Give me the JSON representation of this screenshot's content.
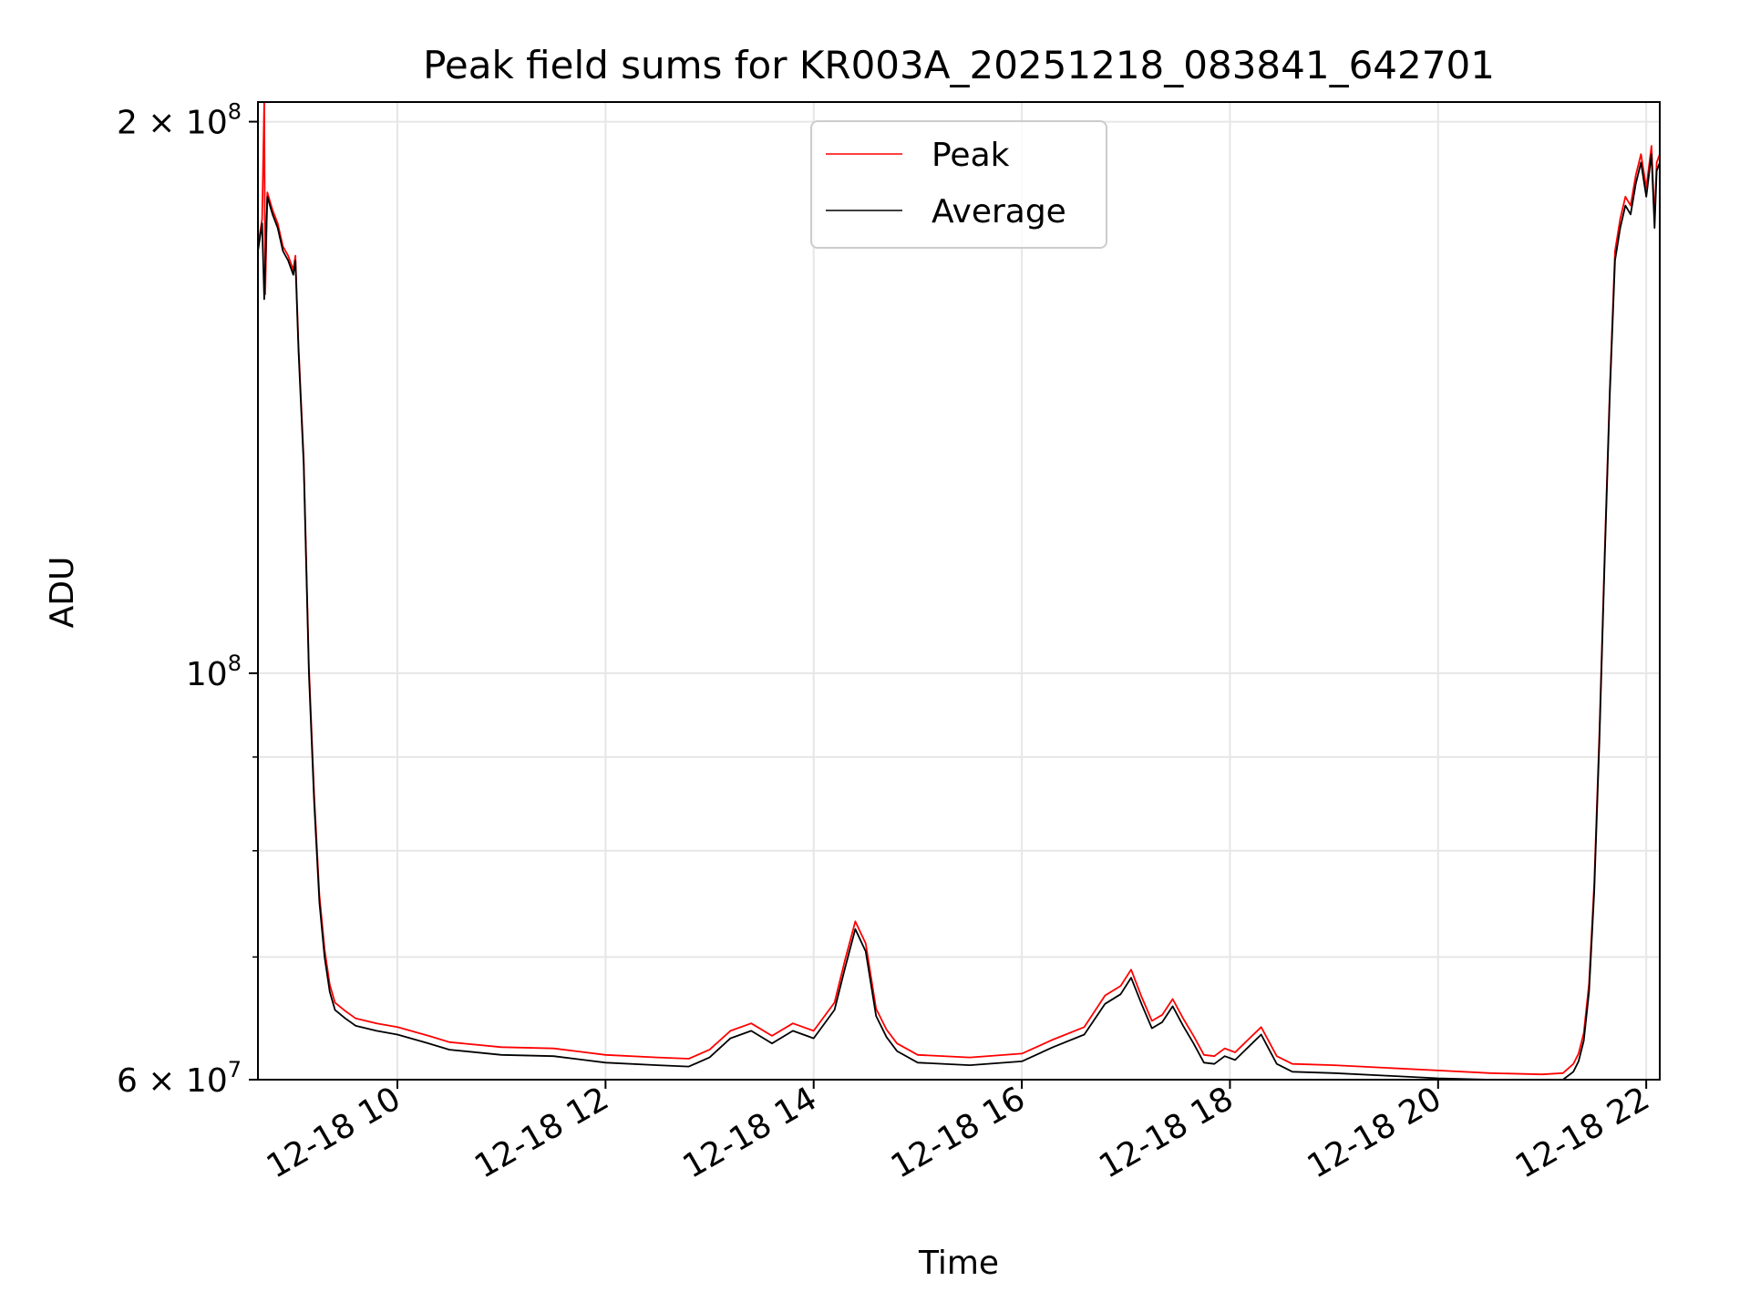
{
  "chart_data": {
    "type": "line",
    "title": "Peak field sums for KR003A_20251218_083841_642701",
    "xlabel": "Time",
    "ylabel": "ADU",
    "yscale": "log",
    "ylim": [
      60000000,
      205000000
    ],
    "xlim": [
      8.66,
      22.13
    ],
    "grid": true,
    "legend": {
      "position": "top-center",
      "entries": [
        "Peak",
        "Average"
      ]
    },
    "x_ticks": [
      {
        "value": 10,
        "label": "12-18 10"
      },
      {
        "value": 12,
        "label": "12-18 12"
      },
      {
        "value": 14,
        "label": "12-18 14"
      },
      {
        "value": 16,
        "label": "12-18 16"
      },
      {
        "value": 18,
        "label": "12-18 18"
      },
      {
        "value": 20,
        "label": "12-18 20"
      },
      {
        "value": 22,
        "label": "12-18 22"
      }
    ],
    "y_major_ticks": [
      {
        "value": 60000000,
        "base": "6 × 10",
        "exp": "7"
      },
      {
        "value": 100000000,
        "base": "10",
        "exp": "8"
      },
      {
        "value": 200000000,
        "base": "2 × 10",
        "exp": "8"
      }
    ],
    "y_minor_ticks": [
      70000000,
      80000000,
      90000000
    ],
    "x_units": "hours (2025-12-18)",
    "series": [
      {
        "name": "Average",
        "color": "#000000",
        "x": [
          8.66,
          8.7,
          8.72,
          8.75,
          8.8,
          8.85,
          8.9,
          8.95,
          9.0,
          9.02,
          9.05,
          9.1,
          9.15,
          9.2,
          9.25,
          9.3,
          9.35,
          9.4,
          9.5,
          9.6,
          9.8,
          10.0,
          10.3,
          10.5,
          11.0,
          11.5,
          12.0,
          12.5,
          12.8,
          13.0,
          13.2,
          13.4,
          13.6,
          13.8,
          14.0,
          14.2,
          14.3,
          14.4,
          14.5,
          14.6,
          14.7,
          14.8,
          15.0,
          15.5,
          16.0,
          16.3,
          16.6,
          16.8,
          16.95,
          17.05,
          17.15,
          17.25,
          17.35,
          17.45,
          17.55,
          17.65,
          17.75,
          17.85,
          17.95,
          18.05,
          18.15,
          18.3,
          18.45,
          18.6,
          19.0,
          19.5,
          20.0,
          20.5,
          21.0,
          21.2,
          21.3,
          21.35,
          21.4,
          21.45,
          21.5,
          21.55,
          21.6,
          21.65,
          21.7,
          21.75,
          21.8,
          21.85,
          21.9,
          21.95,
          22.0,
          22.05,
          22.08,
          22.1,
          22.13
        ],
        "values": [
          170000000,
          176000000,
          160000000,
          182000000,
          178000000,
          175000000,
          170000000,
          168000000,
          165000000,
          168000000,
          150000000,
          130000000,
          100000000,
          85000000,
          75000000,
          70000000,
          67000000,
          65500000,
          64800000,
          64200000,
          63800000,
          63500000,
          62800000,
          62300000,
          61900000,
          61800000,
          61300000,
          61100000,
          61000000,
          61700000,
          63200000,
          63800000,
          62800000,
          63800000,
          63200000,
          65500000,
          69000000,
          72500000,
          70500000,
          65000000,
          63300000,
          62200000,
          61300000,
          61100000,
          61400000,
          62500000,
          63500000,
          66000000,
          66800000,
          68200000,
          66000000,
          64000000,
          64500000,
          65800000,
          64200000,
          62800000,
          61300000,
          61200000,
          61800000,
          61500000,
          62300000,
          63500000,
          61200000,
          60600000,
          60500000,
          60300000,
          60100000,
          60000000,
          59900000,
          60000000,
          60600000,
          61400000,
          63000000,
          67000000,
          76000000,
          92000000,
          115000000,
          142000000,
          168000000,
          175000000,
          180000000,
          178000000,
          185000000,
          190000000,
          182000000,
          192000000,
          175000000,
          188000000,
          190000000
        ]
      },
      {
        "name": "Peak",
        "color": "#ff0000",
        "x": [
          8.66,
          8.7,
          8.72,
          8.73,
          8.75,
          8.8,
          8.85,
          8.9,
          8.95,
          9.0,
          9.02,
          9.05,
          9.1,
          9.15,
          9.2,
          9.25,
          9.3,
          9.35,
          9.4,
          9.5,
          9.6,
          9.8,
          10.0,
          10.3,
          10.5,
          11.0,
          11.5,
          12.0,
          12.5,
          12.8,
          13.0,
          13.2,
          13.4,
          13.6,
          13.8,
          14.0,
          14.2,
          14.3,
          14.4,
          14.5,
          14.6,
          14.7,
          14.8,
          15.0,
          15.5,
          16.0,
          16.3,
          16.6,
          16.8,
          16.95,
          17.05,
          17.15,
          17.25,
          17.35,
          17.45,
          17.55,
          17.65,
          17.75,
          17.85,
          17.95,
          18.05,
          18.15,
          18.3,
          18.45,
          18.6,
          19.0,
          19.5,
          20.0,
          20.5,
          21.0,
          21.2,
          21.3,
          21.35,
          21.4,
          21.45,
          21.5,
          21.55,
          21.6,
          21.65,
          21.7,
          21.75,
          21.8,
          21.85,
          21.9,
          21.95,
          22.0,
          22.05,
          22.08,
          22.1,
          22.13
        ],
        "values": [
          171000000,
          177000000,
          205000000,
          161000000,
          183000000,
          179000000,
          176000000,
          171000000,
          169000000,
          166000000,
          169000000,
          151000000,
          131000000,
          101000000,
          85800000,
          75700000,
          70700000,
          67600000,
          66100000,
          65400000,
          64800000,
          64400000,
          64100000,
          63400000,
          62900000,
          62500000,
          62400000,
          61900000,
          61700000,
          61600000,
          62300000,
          63800000,
          64400000,
          63400000,
          64400000,
          63800000,
          66100000,
          69700000,
          73200000,
          71200000,
          65600000,
          63900000,
          62800000,
          61900000,
          61700000,
          62000000,
          63100000,
          64100000,
          66700000,
          67500000,
          68900000,
          66600000,
          64600000,
          65100000,
          66400000,
          64800000,
          63400000,
          61900000,
          61800000,
          62400000,
          62100000,
          62900000,
          64100000,
          61800000,
          61200000,
          61100000,
          60900000,
          60700000,
          60500000,
          60400000,
          60500000,
          61200000,
          62000000,
          63600000,
          67700000,
          76800000,
          92900000,
          116000000,
          143000000,
          170000000,
          177000000,
          182000000,
          180000000,
          187000000,
          192000000,
          184000000,
          194000000,
          177000000,
          190000000,
          192000000
        ]
      }
    ]
  }
}
